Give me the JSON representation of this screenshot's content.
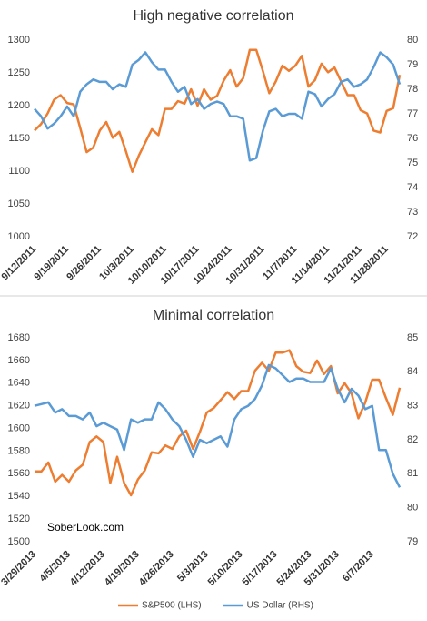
{
  "chart_data": [
    {
      "type": "line",
      "title": "High negative correlation",
      "categories": [
        "9/12/2011",
        null,
        null,
        null,
        null,
        "9/19/2011",
        null,
        null,
        null,
        null,
        "9/26/2011",
        null,
        null,
        null,
        null,
        "10/3/2011",
        null,
        null,
        null,
        null,
        "10/10/2011",
        null,
        null,
        null,
        null,
        "10/17/2011",
        null,
        null,
        null,
        null,
        "10/24/2011",
        null,
        null,
        null,
        null,
        "10/31/2011",
        null,
        null,
        null,
        null,
        "11/7/2011",
        null,
        null,
        null,
        null,
        "11/14/2011",
        null,
        null,
        null,
        null,
        "11/21/2011",
        null,
        null,
        null,
        "11/28/2011",
        null,
        null
      ],
      "series": [
        {
          "color": "#ed7d31",
          "axis": "y",
          "values": [
            1162,
            1172,
            1188,
            1209,
            1216,
            1204,
            1202,
            1166,
            1129,
            1136,
            1162,
            1175,
            1151,
            1160,
            1131,
            1099,
            1124,
            1144,
            1164,
            1155,
            1195,
            1195,
            1207,
            1203,
            1225,
            1200,
            1225,
            1209,
            1215,
            1238,
            1254,
            1229,
            1242,
            1285,
            1285,
            1253,
            1219,
            1237,
            1261,
            1253,
            1261,
            1276,
            1229,
            1239,
            1264,
            1251,
            1258,
            1237,
            1216,
            1216,
            1193,
            1188,
            1162,
            1159,
            1192,
            1196,
            1247
          ]
        },
        {
          "color": "#5b9bd5",
          "axis": "y2",
          "values": [
            77.2,
            76.9,
            76.4,
            76.6,
            76.9,
            77.3,
            76.9,
            77.9,
            78.2,
            78.4,
            78.3,
            78.3,
            78.0,
            78.2,
            78.1,
            79.0,
            79.2,
            79.5,
            79.1,
            78.8,
            78.8,
            78.3,
            77.9,
            78.1,
            77.4,
            77.6,
            77.2,
            77.4,
            77.5,
            77.4,
            76.9,
            76.9,
            76.8,
            75.1,
            75.2,
            76.3,
            77.1,
            77.2,
            76.9,
            77.0,
            77.0,
            76.8,
            77.9,
            77.8,
            77.3,
            77.6,
            77.8,
            78.3,
            78.4,
            78.1,
            78.2,
            78.4,
            78.9,
            79.5,
            79.3,
            79.0,
            78.2
          ]
        }
      ],
      "ylim": [
        1000,
        1300
      ],
      "yticks": [
        1000,
        1050,
        1100,
        1150,
        1200,
        1250,
        1300
      ],
      "y2lim": [
        72,
        80
      ],
      "y2ticks": [
        72,
        73,
        74,
        75,
        76,
        77,
        78,
        79,
        80
      ],
      "grid": false
    },
    {
      "type": "line",
      "title": "Minimal correlation",
      "categories": [
        "3/29/2013",
        null,
        null,
        null,
        null,
        "4/5/2013",
        null,
        null,
        null,
        null,
        "4/12/2013",
        null,
        null,
        null,
        null,
        "4/19/2013",
        null,
        null,
        null,
        null,
        "4/26/2013",
        null,
        null,
        null,
        null,
        "5/3/2013",
        null,
        null,
        null,
        null,
        "5/10/2013",
        null,
        null,
        null,
        null,
        "5/17/2013",
        null,
        null,
        null,
        null,
        "5/24/2013",
        null,
        null,
        null,
        "5/31/2013",
        null,
        null,
        null,
        null,
        "6/7/2013",
        null,
        null,
        null,
        null
      ],
      "series": [
        {
          "name": "S&P500 (LHS)",
          "color": "#ed7d31",
          "axis": "y",
          "values": [
            1562,
            1562,
            1570,
            1553,
            1559,
            1553,
            1563,
            1568,
            1588,
            1593,
            1588,
            1552,
            1575,
            1552,
            1541,
            1555,
            1563,
            1579,
            1578,
            1585,
            1582,
            1593,
            1598,
            1582,
            1597,
            1614,
            1618,
            1625,
            1632,
            1626,
            1633,
            1633,
            1651,
            1658,
            1651,
            1667,
            1667,
            1669,
            1655,
            1650,
            1649,
            1660,
            1648,
            1655,
            1631,
            1640,
            1631,
            1609,
            1623,
            1643,
            1643,
            1627,
            1612,
            1636
          ]
        },
        {
          "name": "US Dollar (RHS)",
          "color": "#5b9bd5",
          "axis": "y2",
          "values": [
            83.0,
            83.05,
            83.1,
            82.8,
            82.9,
            82.7,
            82.7,
            82.6,
            82.8,
            82.4,
            82.5,
            82.4,
            82.3,
            81.7,
            82.6,
            82.5,
            82.6,
            82.6,
            83.1,
            82.9,
            82.6,
            82.4,
            82.0,
            81.5,
            82.0,
            81.9,
            82.0,
            82.1,
            81.8,
            82.6,
            82.9,
            83.0,
            83.2,
            83.6,
            84.2,
            84.1,
            83.9,
            83.7,
            83.8,
            83.8,
            83.7,
            83.7,
            83.7,
            84.1,
            83.5,
            83.1,
            83.5,
            83.3,
            82.9,
            83.0,
            81.7,
            81.7,
            81.0,
            80.6
          ]
        }
      ],
      "ylim": [
        1500,
        1680
      ],
      "yticks": [
        1500,
        1520,
        1540,
        1560,
        1580,
        1600,
        1620,
        1640,
        1660,
        1680
      ],
      "y2lim": [
        79,
        85
      ],
      "y2ticks": [
        79,
        80,
        81,
        82,
        83,
        84,
        85
      ],
      "grid": false,
      "annotation": "SoberLook.com",
      "legend": "bottom"
    }
  ]
}
